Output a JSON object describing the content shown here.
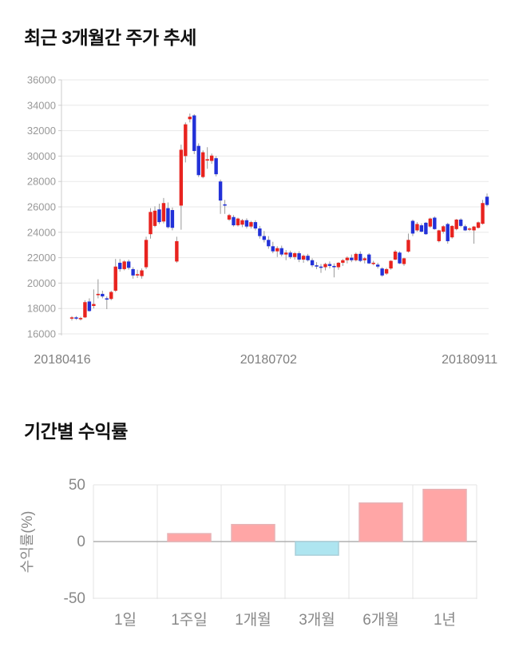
{
  "section_price": {
    "title": "최근 3개월간 주가 추세"
  },
  "section_returns": {
    "title": "기간별 수익률"
  },
  "chart_data": [
    {
      "type": "candlestick",
      "title": "최근 3개월간 주가 추세",
      "ylabel": "",
      "ylim": [
        16000,
        36000
      ],
      "ytick_step": 2000,
      "ytick_labels": [
        "16000",
        "18000",
        "20000",
        "22000",
        "24000",
        "26000",
        "28000",
        "30000",
        "32000",
        "34000",
        "36000"
      ],
      "xtick_labels": [
        "20180416",
        "20180702",
        "20180911"
      ],
      "xtick_indices": [
        0,
        45,
        91
      ],
      "grid": true,
      "up_color": "#e8231f",
      "down_color": "#2231d8",
      "wick_color": "#9a9a9a",
      "axis_label_color": "#8c8c8c",
      "grid_color": "#e8e8e8",
      "ohlc": [
        [
          17250,
          17400,
          17050,
          17300
        ],
        [
          17300,
          17400,
          17100,
          17200
        ],
        [
          17200,
          17350,
          17050,
          17250
        ],
        [
          17300,
          18650,
          17250,
          18500
        ],
        [
          18550,
          18800,
          17750,
          17800
        ],
        [
          18200,
          19500,
          18000,
          18350
        ],
        [
          19100,
          20300,
          18800,
          19150
        ],
        [
          19150,
          19400,
          18800,
          18950
        ],
        [
          18800,
          18950,
          17950,
          18700
        ],
        [
          18750,
          19400,
          18650,
          19300
        ],
        [
          19400,
          21900,
          19300,
          21300
        ],
        [
          21600,
          21900,
          20900,
          21100
        ],
        [
          21100,
          21800,
          21000,
          21700
        ],
        [
          21700,
          21850,
          21050,
          21200
        ],
        [
          21100,
          21250,
          20350,
          20600
        ],
        [
          20600,
          21050,
          20400,
          20700
        ],
        [
          20550,
          21150,
          20350,
          21000
        ],
        [
          21250,
          23650,
          21100,
          23400
        ],
        [
          23850,
          25900,
          23500,
          25600
        ],
        [
          24500,
          26050,
          24400,
          25700
        ],
        [
          25800,
          26250,
          24650,
          24800
        ],
        [
          24850,
          26700,
          24700,
          26300
        ],
        [
          25900,
          26350,
          24300,
          24400
        ],
        [
          25750,
          25950,
          24150,
          24350
        ],
        [
          21700,
          23650,
          21600,
          23300
        ],
        [
          26100,
          30900,
          24200,
          30500
        ],
        [
          30000,
          32650,
          29500,
          32500
        ],
        [
          32900,
          33350,
          32650,
          33100
        ],
        [
          33200,
          33300,
          30150,
          30400
        ],
        [
          30800,
          31000,
          28350,
          28500
        ],
        [
          28350,
          30450,
          28250,
          30300
        ],
        [
          29650,
          30700,
          29000,
          29750
        ],
        [
          29620,
          30200,
          29400,
          30040
        ],
        [
          29830,
          30000,
          28400,
          28570
        ],
        [
          28000,
          28150,
          25450,
          26500
        ],
        [
          26200,
          26550,
          25450,
          26100
        ],
        [
          25000,
          25450,
          24900,
          25350
        ],
        [
          25200,
          25350,
          24450,
          24550
        ],
        [
          24550,
          25150,
          24450,
          25080
        ],
        [
          24600,
          25050,
          24400,
          24950
        ],
        [
          24950,
          25100,
          24300,
          24450
        ],
        [
          24450,
          24900,
          24300,
          24800
        ],
        [
          24800,
          24950,
          24150,
          24300
        ],
        [
          24300,
          24500,
          23500,
          23700
        ],
        [
          23700,
          24100,
          23200,
          23400
        ],
        [
          23400,
          23700,
          22700,
          22900
        ],
        [
          22900,
          23250,
          22350,
          22500
        ],
        [
          22500,
          22900,
          22050,
          22750
        ],
        [
          22750,
          22950,
          22100,
          22250
        ],
        [
          22250,
          22600,
          21800,
          22400
        ],
        [
          22400,
          22550,
          21900,
          22050
        ],
        [
          22050,
          22450,
          21850,
          22350
        ],
        [
          22350,
          22500,
          21650,
          21850
        ],
        [
          21850,
          22250,
          21600,
          22150
        ],
        [
          22150,
          22300,
          21700,
          21800
        ],
        [
          21800,
          21950,
          21250,
          21400
        ],
        [
          21400,
          21650,
          21100,
          21300
        ],
        [
          21300,
          21500,
          20800,
          21250
        ],
        [
          21250,
          21600,
          21000,
          21500
        ],
        [
          21500,
          21700,
          21150,
          21350
        ],
        [
          21350,
          21550,
          20450,
          21250
        ],
        [
          21250,
          21650,
          21050,
          21600
        ],
        [
          21600,
          21900,
          21350,
          21800
        ],
        [
          21800,
          22100,
          21550,
          22000
        ],
        [
          22000,
          22250,
          21650,
          21800
        ],
        [
          21800,
          22400,
          21700,
          22300
        ],
        [
          22300,
          22500,
          21650,
          21750
        ],
        [
          21800,
          22050,
          21550,
          21950
        ],
        [
          22250,
          22350,
          21500,
          21550
        ],
        [
          21550,
          21750,
          21400,
          21600
        ],
        [
          21450,
          21600,
          21150,
          21300
        ],
        [
          21150,
          21250,
          20500,
          20600
        ],
        [
          20750,
          21200,
          20650,
          21100
        ],
        [
          21150,
          21800,
          21050,
          21750
        ],
        [
          21850,
          22600,
          21800,
          22480
        ],
        [
          22400,
          22500,
          21500,
          21550
        ],
        [
          21500,
          22000,
          21350,
          21950
        ],
        [
          22480,
          23900,
          22400,
          23400
        ],
        [
          24900,
          25000,
          23700,
          23900
        ],
        [
          24150,
          24800,
          24050,
          24650
        ],
        [
          24550,
          24700,
          24000,
          24050
        ],
        [
          24750,
          24800,
          23800,
          23850
        ],
        [
          24450,
          25150,
          24350,
          25080
        ],
        [
          25150,
          25250,
          24200,
          24250
        ],
        [
          23300,
          24200,
          23200,
          24150
        ],
        [
          24050,
          24550,
          23900,
          24470
        ],
        [
          24650,
          24750,
          23100,
          23300
        ],
        [
          23600,
          24550,
          23500,
          24500
        ],
        [
          24250,
          25050,
          24150,
          25000
        ],
        [
          25000,
          25100,
          24400,
          24500
        ],
        [
          24470,
          24600,
          24100,
          24150
        ],
        [
          24250,
          24400,
          24100,
          24300
        ],
        [
          24150,
          24500,
          23100,
          24450
        ],
        [
          24350,
          24850,
          24300,
          24780
        ],
        [
          24670,
          26550,
          24600,
          26300
        ],
        [
          26800,
          27050,
          26050,
          26150
        ]
      ]
    },
    {
      "type": "bar",
      "title": "기간별 수익률",
      "ylabel": "수익률(%)",
      "categories": [
        "1일",
        "1주일",
        "1개월",
        "3개월",
        "6개월",
        "1년"
      ],
      "values": [
        0,
        7,
        15,
        -12,
        34,
        46
      ],
      "yticks": [
        50,
        0,
        -50
      ],
      "ylim": [
        -50,
        50
      ],
      "grid": true,
      "legend": "none",
      "positive_color": "#ffa6a6",
      "positive_border": "#e7b2b5",
      "negative_color": "#aee5f0",
      "negative_border": "#a9cfd9",
      "zero_line_color": "#b0b0b0",
      "grid_color": "#e3e3e3",
      "axis_label_color": "#888888"
    }
  ]
}
